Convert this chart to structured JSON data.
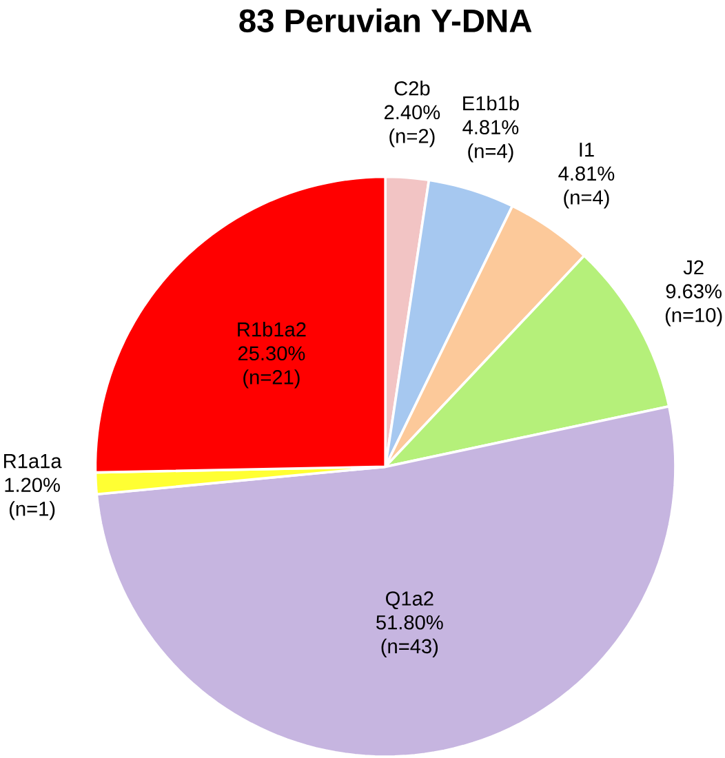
{
  "chart_data": {
    "type": "pie",
    "title": "83 Peruvian Y-DNA",
    "categories": [
      "C2b",
      "E1b1b",
      "I1",
      "J2",
      "Q1a2",
      "R1a1a",
      "R1b1a2"
    ],
    "values": [
      2.4,
      4.81,
      4.81,
      9.63,
      51.8,
      1.2,
      25.3
    ],
    "value_labels": [
      "2.40%",
      "4.81%",
      "4.81%",
      "9.63%",
      "51.80%",
      "1.20%",
      "25.30%"
    ],
    "annotations": [
      "(n=2)",
      "(n=4)",
      "(n=4)",
      "(n=10)",
      "(n=43)",
      "(n=1)",
      "(n=21)"
    ],
    "colors": [
      "#f2c4c4",
      "#a6c8f0",
      "#fcc99a",
      "#b5f07a",
      "#c6b5e0",
      "#ffff33",
      "#ff0000"
    ]
  }
}
